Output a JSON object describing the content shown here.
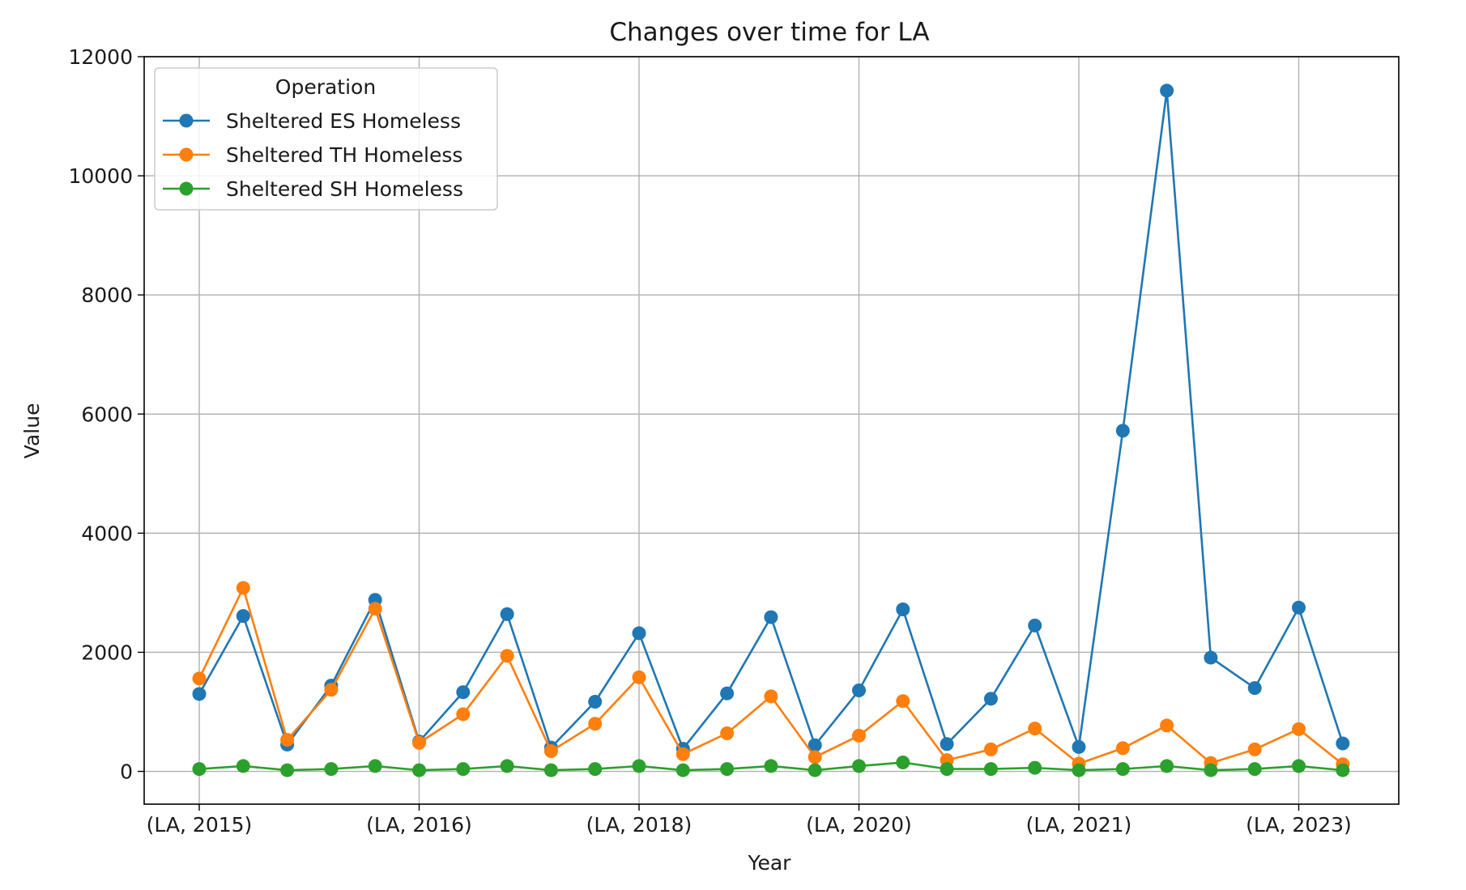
{
  "chart_data": {
    "type": "line",
    "title": "Changes over time for LA",
    "xlabel": "Year",
    "ylabel": "Value",
    "x_tick_labels": [
      {
        "index": 0,
        "label": "(LA, 2015)"
      },
      {
        "index": 5,
        "label": "(LA, 2016)"
      },
      {
        "index": 10,
        "label": "(LA, 2018)"
      },
      {
        "index": 15,
        "label": "(LA, 2020)"
      },
      {
        "index": 20,
        "label": "(LA, 2021)"
      },
      {
        "index": 25,
        "label": "(LA, 2023)"
      }
    ],
    "ylim": [
      -550,
      12000
    ],
    "yticks": [
      0,
      2000,
      4000,
      6000,
      8000,
      10000,
      12000
    ],
    "grid": true,
    "legend": {
      "title": "Operation",
      "placement": "top-left"
    },
    "series": [
      {
        "name": "Sheltered ES Homeless",
        "color": "#1f77b4",
        "values": [
          1300,
          2610,
          450,
          1440,
          2880,
          500,
          1330,
          2640,
          400,
          1170,
          2320,
          380,
          1310,
          2590,
          440,
          1360,
          2720,
          460,
          1220,
          2450,
          410,
          5720,
          11430,
          1910,
          1400,
          2750,
          470
        ]
      },
      {
        "name": "Sheltered TH Homeless",
        "color": "#ff7f0e",
        "values": [
          1560,
          3080,
          530,
          1370,
          2730,
          480,
          960,
          1940,
          340,
          800,
          1580,
          290,
          640,
          1260,
          240,
          600,
          1180,
          190,
          370,
          720,
          130,
          390,
          770,
          140,
          370,
          710,
          120
        ]
      },
      {
        "name": "Sheltered SH Homeless",
        "color": "#2ca02c",
        "values": [
          40,
          90,
          20,
          40,
          90,
          20,
          40,
          90,
          20,
          40,
          90,
          20,
          40,
          90,
          20,
          90,
          150,
          40,
          40,
          60,
          20,
          40,
          90,
          20,
          40,
          90,
          20
        ]
      }
    ]
  }
}
